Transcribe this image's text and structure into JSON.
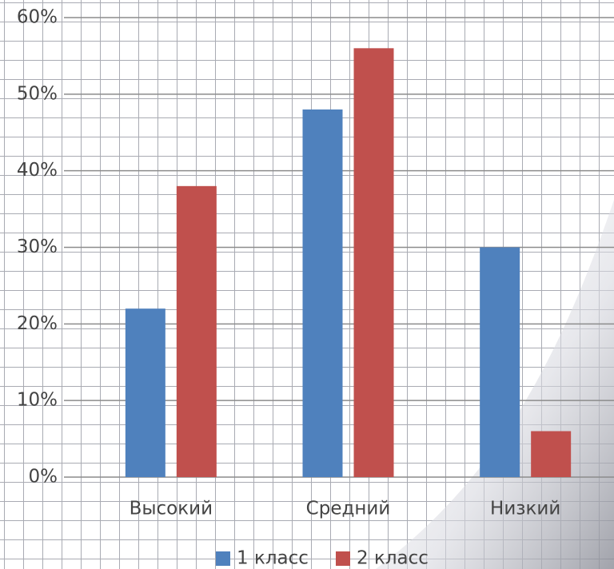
{
  "chart_data": {
    "type": "bar",
    "categories": [
      "Высокий",
      "Средний",
      "Низкий"
    ],
    "series": [
      {
        "name": "1 класс",
        "color": "#4f81bd",
        "values": [
          22,
          48,
          30
        ]
      },
      {
        "name": "2 класс",
        "color": "#c0504d",
        "values": [
          38,
          56,
          6
        ]
      }
    ],
    "ylim": [
      0,
      60
    ],
    "yticks": [
      {
        "value": 0,
        "label": "0%"
      },
      {
        "value": 10,
        "label": "10%"
      },
      {
        "value": 20,
        "label": "20%"
      },
      {
        "value": 30,
        "label": "30%"
      },
      {
        "value": 40,
        "label": "40%"
      },
      {
        "value": 50,
        "label": "50%"
      },
      {
        "value": 60,
        "label": "60%"
      }
    ],
    "grid": true,
    "legend": "bottom"
  }
}
